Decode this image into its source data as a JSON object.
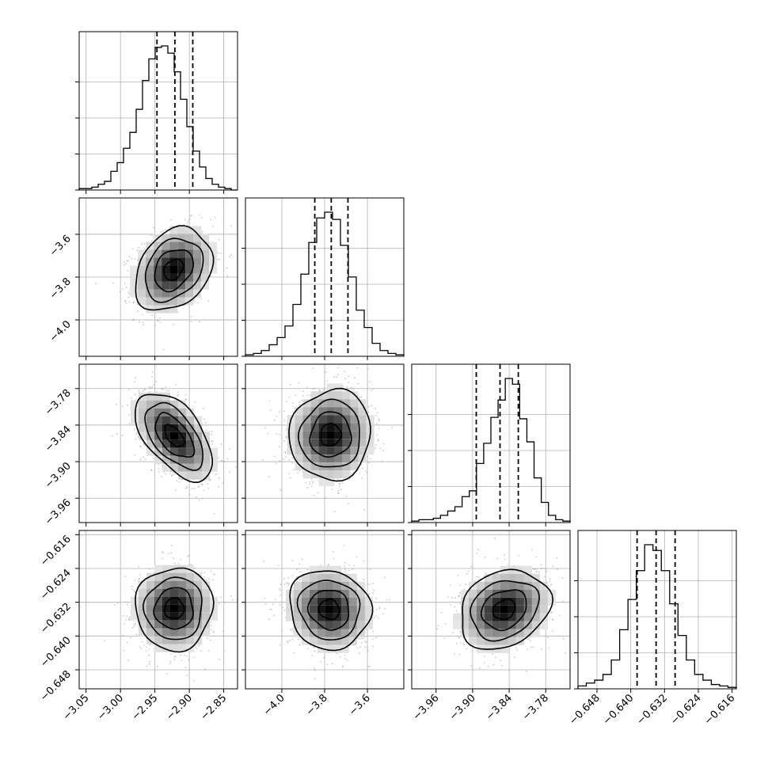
{
  "chart_data": {
    "type": "corner",
    "parameters": [
      {
        "range": [
          -3.06,
          -2.83
        ],
        "quantiles": [
          -2.947,
          -2.921,
          -2.895
        ]
      },
      {
        "range": [
          -4.17,
          -3.43
        ],
        "quantiles": [
          -3.846,
          -3.769,
          -3.691
        ]
      },
      {
        "range": [
          -4.0,
          -3.74
        ],
        "quantiles": [
          -3.894,
          -3.855,
          -3.825
        ]
      },
      {
        "range": [
          -0.6525,
          -0.615
        ],
        "quantiles": [
          -0.6385,
          -0.634,
          -0.6295
        ]
      }
    ],
    "x_ticks": [
      {
        "values": [
          -3.05,
          -3.0,
          -2.95,
          -2.9,
          -2.85
        ],
        "labels": [
          "−3.05",
          "−3.00",
          "−2.95",
          "−2.90",
          "−2.85"
        ]
      },
      {
        "values": [
          -4.0,
          -3.8,
          -3.6
        ],
        "labels": [
          "−4.0",
          "−3.8",
          "−3.6"
        ]
      },
      {
        "values": [
          -3.96,
          -3.9,
          -3.84,
          -3.78
        ],
        "labels": [
          "−3.96",
          "−3.90",
          "−3.84",
          "−3.78"
        ]
      },
      {
        "values": [
          -0.648,
          -0.64,
          -0.632,
          -0.624,
          -0.616
        ],
        "labels": [
          "−0.648",
          "−0.640",
          "−0.632",
          "−0.624",
          "−0.616"
        ]
      }
    ],
    "y_ticks": [
      null,
      {
        "values": [
          -3.6,
          -3.8,
          -4.0
        ],
        "labels": [
          "−3.6",
          "−3.8",
          "−4.0"
        ]
      },
      {
        "values": [
          -3.78,
          -3.84,
          -3.9,
          -3.96
        ],
        "labels": [
          "−3.78",
          "−3.84",
          "−3.90",
          "−3.96"
        ]
      },
      {
        "values": [
          -0.616,
          -0.624,
          -0.632,
          -0.64,
          -0.648
        ],
        "labels": [
          "−0.616",
          "−0.624",
          "−0.632",
          "−0.640",
          "−0.648"
        ]
      }
    ],
    "histograms": [
      [
        0.01,
        0.01,
        0.02,
        0.04,
        0.06,
        0.13,
        0.19,
        0.29,
        0.4,
        0.56,
        0.76,
        0.91,
        0.99,
        1.0,
        0.95,
        0.82,
        0.63,
        0.44,
        0.27,
        0.16,
        0.08,
        0.04,
        0.02,
        0.01,
        0.0
      ],
      [
        0.01,
        0.02,
        0.04,
        0.08,
        0.13,
        0.21,
        0.36,
        0.57,
        0.79,
        0.96,
        1.0,
        0.95,
        0.77,
        0.55,
        0.32,
        0.2,
        0.09,
        0.04,
        0.02,
        0.01
      ],
      [
        0.01,
        0.02,
        0.02,
        0.03,
        0.05,
        0.08,
        0.11,
        0.18,
        0.22,
        0.41,
        0.55,
        0.73,
        0.85,
        1.0,
        0.96,
        0.72,
        0.56,
        0.31,
        0.14,
        0.05,
        0.02,
        0.01
      ],
      [
        0.02,
        0.04,
        0.06,
        0.1,
        0.2,
        0.41,
        0.62,
        0.82,
        1.0,
        0.96,
        0.82,
        0.59,
        0.37,
        0.2,
        0.1,
        0.06,
        0.03,
        0.02,
        0.01
      ]
    ],
    "grid": true,
    "pairs": [
      {
        "row": 1,
        "col": 0,
        "center": [
          -2.923,
          -3.765
        ],
        "scale": [
          0.028,
          0.097
        ],
        "correlation": 0.28
      },
      {
        "row": 2,
        "col": 0,
        "center": [
          -2.922,
          -3.858
        ],
        "scale": [
          0.028,
          0.036
        ],
        "correlation": -0.55
      },
      {
        "row": 2,
        "col": 1,
        "center": [
          -3.772,
          -3.856
        ],
        "scale": [
          0.095,
          0.037
        ],
        "correlation": 0.05
      },
      {
        "row": 3,
        "col": 0,
        "center": [
          -2.922,
          -0.6335
        ],
        "scale": [
          0.028,
          0.0049
        ],
        "correlation": 0.02
      },
      {
        "row": 3,
        "col": 1,
        "center": [
          -3.778,
          -0.6337
        ],
        "scale": [
          0.095,
          0.0047
        ],
        "correlation": -0.08
      },
      {
        "row": 3,
        "col": 2,
        "center": [
          -3.848,
          -0.6337
        ],
        "scale": [
          0.037,
          0.0047
        ],
        "correlation": 0.22
      }
    ]
  }
}
